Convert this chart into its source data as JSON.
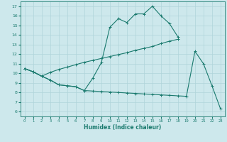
{
  "xlabel": "Humidex (Indice chaleur)",
  "bg_color": "#cde8ec",
  "grid_color": "#b0d4da",
  "line_color": "#1a7a6e",
  "xlim": [
    -0.5,
    23.5
  ],
  "ylim": [
    5.5,
    17.5
  ],
  "xticks": [
    0,
    1,
    2,
    3,
    4,
    5,
    6,
    7,
    8,
    9,
    10,
    11,
    12,
    13,
    14,
    15,
    16,
    17,
    18,
    19,
    20,
    21,
    22,
    23
  ],
  "yticks": [
    6,
    7,
    8,
    9,
    10,
    11,
    12,
    13,
    14,
    15,
    16,
    17
  ],
  "line1_x": [
    0,
    1,
    2,
    3,
    4,
    5,
    6,
    7,
    8,
    9,
    10,
    11,
    12,
    13,
    14,
    15,
    16,
    17,
    18
  ],
  "line1_y": [
    10.5,
    10.15,
    9.7,
    9.3,
    8.8,
    8.7,
    8.6,
    8.2,
    9.5,
    11.1,
    14.8,
    15.7,
    15.3,
    16.2,
    16.2,
    17.0,
    16.0,
    15.2,
    13.8
  ],
  "line2_x": [
    0,
    1,
    2,
    3,
    4,
    5,
    6,
    7,
    8,
    9,
    10,
    11,
    12,
    13,
    14,
    15,
    16,
    17,
    18
  ],
  "line2_y": [
    10.5,
    10.15,
    9.7,
    10.1,
    10.4,
    10.65,
    10.9,
    11.15,
    11.35,
    11.55,
    11.75,
    11.95,
    12.15,
    12.4,
    12.6,
    12.8,
    13.1,
    13.35,
    13.55
  ],
  "line3_x": [
    0,
    1,
    2,
    3,
    4,
    5,
    6,
    7,
    8,
    9,
    10,
    11,
    12,
    13,
    14,
    15,
    16,
    17,
    18,
    19,
    20,
    21,
    22,
    23
  ],
  "line3_y": [
    10.5,
    10.15,
    9.7,
    9.3,
    8.8,
    8.7,
    8.6,
    8.2,
    8.15,
    8.1,
    8.05,
    8.0,
    7.95,
    7.9,
    7.85,
    7.8,
    7.75,
    7.7,
    7.65,
    7.6,
    12.3,
    11.0,
    8.7,
    6.3
  ]
}
